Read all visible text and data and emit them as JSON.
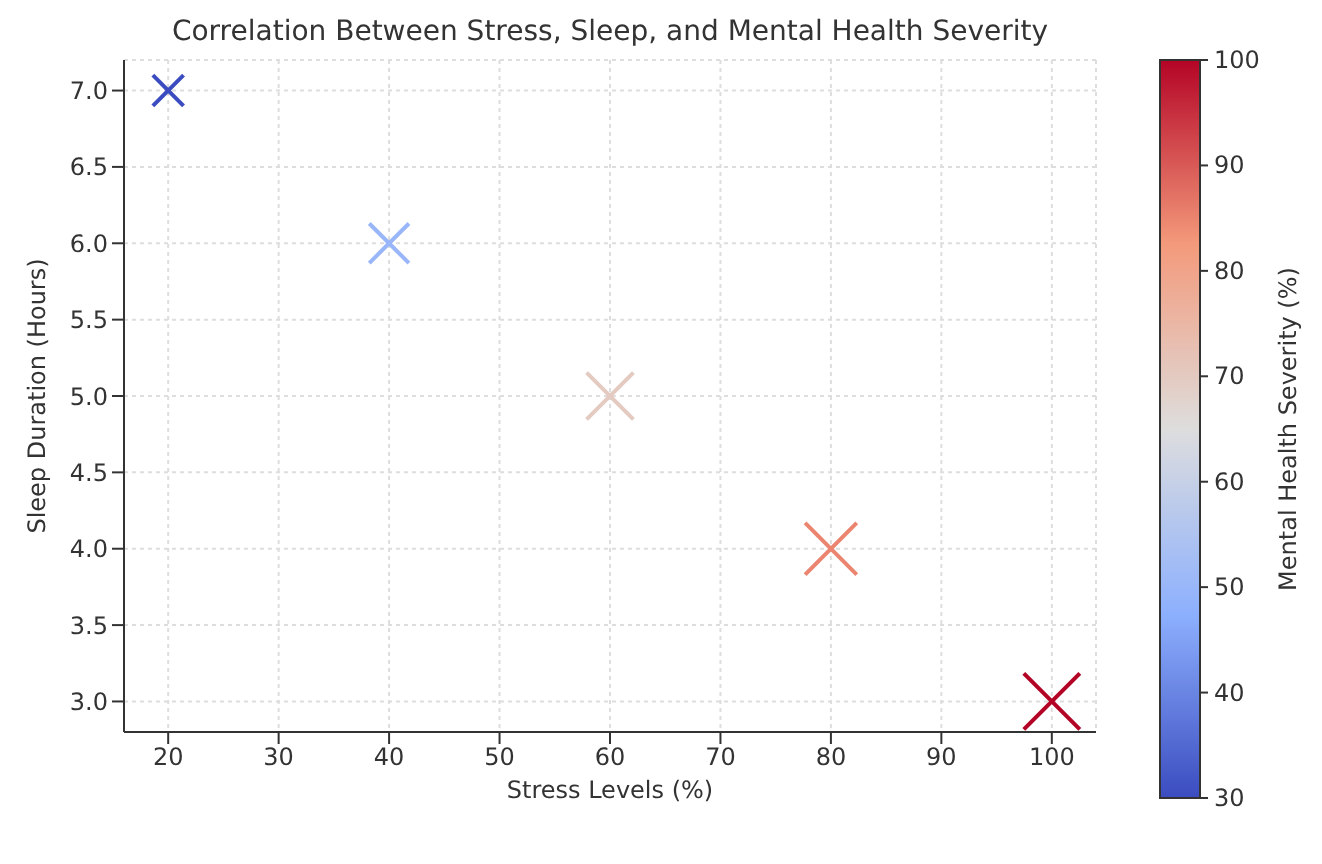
{
  "chart_data": {
    "type": "scatter",
    "title": "Correlation Between Stress, Sleep, and Mental Health Severity",
    "xlabel": "Stress Levels (%)",
    "ylabel": "Sleep Duration (Hours)",
    "clabel": "Mental Health Severity (%)",
    "x": [
      20,
      40,
      60,
      80,
      100
    ],
    "values": [
      7,
      6,
      5,
      4,
      3
    ],
    "cvalues": [
      30,
      50,
      70,
      85,
      100
    ],
    "sizes": [
      0.3,
      0.5,
      0.7,
      0.85,
      1
    ],
    "marker": "cross",
    "xlim": [
      16,
      104
    ],
    "xticks": [
      20,
      30,
      40,
      50,
      60,
      70,
      80,
      90,
      100
    ],
    "ylim": [
      2.8,
      7.2
    ],
    "yticks": [
      {
        "value": 3,
        "label": "3.0"
      },
      {
        "value": 3.5,
        "label": "3.5"
      },
      {
        "value": 4,
        "label": "4.0"
      },
      {
        "value": 4.5,
        "label": "4.5"
      },
      {
        "value": 5,
        "label": "5.0"
      },
      {
        "value": 5.5,
        "label": "5.5"
      },
      {
        "value": 6,
        "label": "6.0"
      },
      {
        "value": 6.5,
        "label": "6.5"
      },
      {
        "value": 7,
        "label": "7.0"
      }
    ],
    "clim": [
      30,
      100
    ],
    "cticks": [
      30,
      40,
      50,
      60,
      70,
      80,
      90,
      100
    ],
    "grid": true
  }
}
